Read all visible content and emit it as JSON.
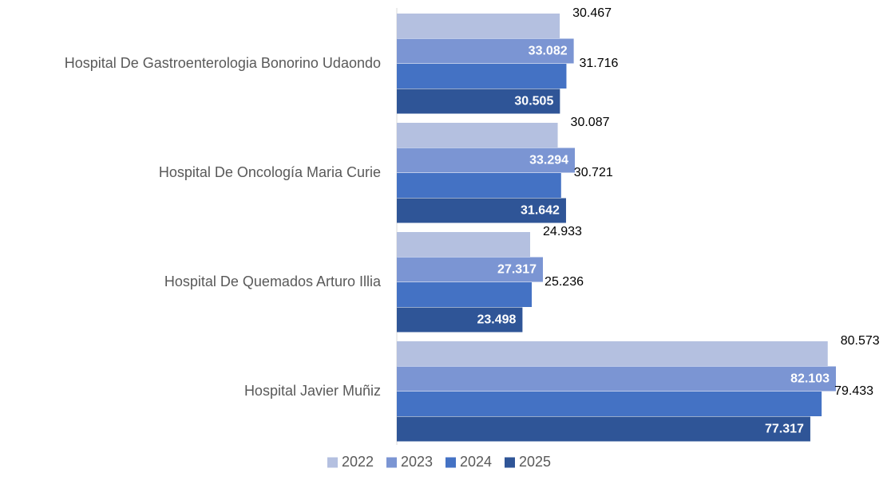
{
  "chart_data": {
    "type": "barh",
    "categories": [
      "Hospital De Gastroenterologia Bonorino Udaondo",
      "Hospital De Oncología Maria Curie",
      "Hospital De Quemados Arturo Illia",
      "Hospital Javier Muñiz"
    ],
    "series": [
      {
        "name": "2022",
        "color": "#b4c0e0",
        "label_position": "outside",
        "values": [
          30467,
          30087,
          24933,
          80573
        ],
        "value_labels": [
          "30.467",
          "30.087",
          "24.933",
          "80.573"
        ]
      },
      {
        "name": "2023",
        "color": "#7b95d3",
        "label_position": "inside",
        "values": [
          33082,
          33294,
          27317,
          82103
        ],
        "value_labels": [
          "33.082",
          "33.294",
          "27.317",
          "82.103"
        ]
      },
      {
        "name": "2024",
        "color": "#4472c4",
        "label_position": "outside",
        "values": [
          31716,
          30721,
          25236,
          79433
        ],
        "value_labels": [
          "31.716",
          "30.721",
          "25.236",
          "79.433"
        ]
      },
      {
        "name": "2025",
        "color": "#2f5597",
        "label_position": "inside",
        "values": [
          30505,
          31642,
          23498,
          77317
        ],
        "value_labels": [
          "30.505",
          "31.642",
          "23.498",
          "77.317"
        ]
      }
    ],
    "legend": "bottom"
  }
}
